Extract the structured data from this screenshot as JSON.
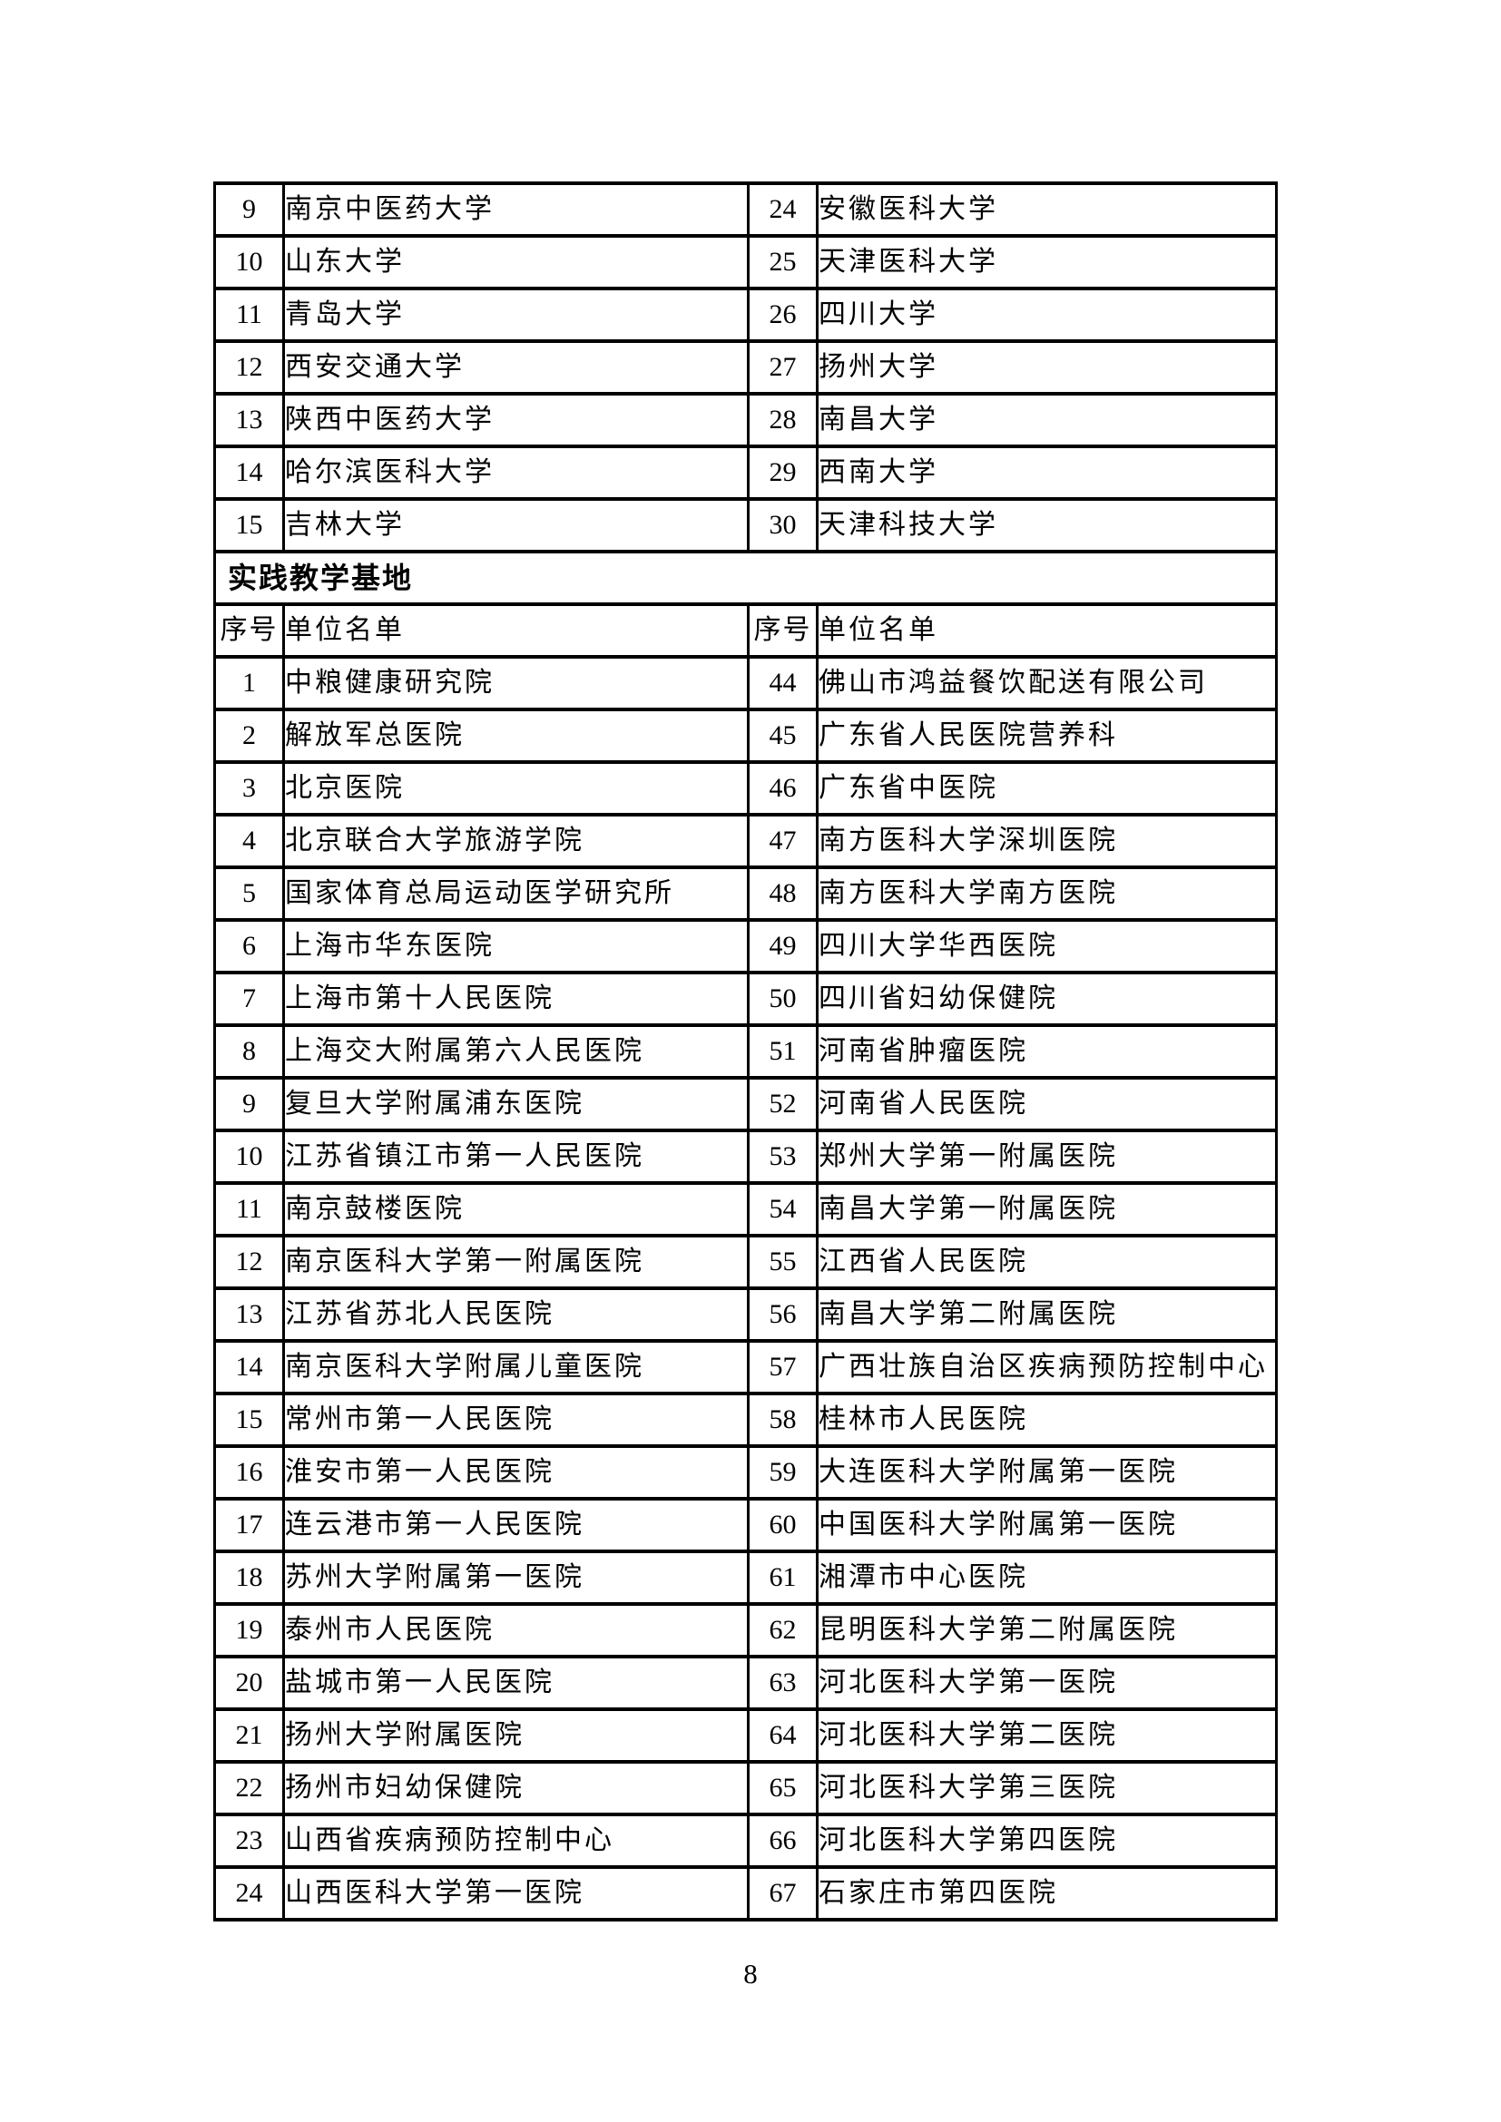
{
  "page": {
    "number": "8"
  },
  "table": {
    "section_header": "实践教学基地",
    "column_headers": {
      "no": "序号",
      "name": "单位名单"
    },
    "universities": {
      "left": [
        {
          "no": "9",
          "name": "南京中医药大学"
        },
        {
          "no": "10",
          "name": "山东大学"
        },
        {
          "no": "11",
          "name": "青岛大学"
        },
        {
          "no": "12",
          "name": "西安交通大学"
        },
        {
          "no": "13",
          "name": "陕西中医药大学"
        },
        {
          "no": "14",
          "name": "哈尔滨医科大学"
        },
        {
          "no": "15",
          "name": "吉林大学"
        }
      ],
      "right": [
        {
          "no": "24",
          "name": "安徽医科大学"
        },
        {
          "no": "25",
          "name": "天津医科大学"
        },
        {
          "no": "26",
          "name": "四川大学"
        },
        {
          "no": "27",
          "name": "扬州大学"
        },
        {
          "no": "28",
          "name": "南昌大学"
        },
        {
          "no": "29",
          "name": "西南大学"
        },
        {
          "no": "30",
          "name": "天津科技大学"
        }
      ]
    },
    "bases": {
      "left": [
        {
          "no": "1",
          "name": "中粮健康研究院"
        },
        {
          "no": "2",
          "name": "解放军总医院"
        },
        {
          "no": "3",
          "name": "北京医院"
        },
        {
          "no": "4",
          "name": "北京联合大学旅游学院"
        },
        {
          "no": "5",
          "name": "国家体育总局运动医学研究所"
        },
        {
          "no": "6",
          "name": "上海市华东医院"
        },
        {
          "no": "7",
          "name": "上海市第十人民医院"
        },
        {
          "no": "8",
          "name": "上海交大附属第六人民医院"
        },
        {
          "no": "9",
          "name": "复旦大学附属浦东医院"
        },
        {
          "no": "10",
          "name": "江苏省镇江市第一人民医院"
        },
        {
          "no": "11",
          "name": "南京鼓楼医院"
        },
        {
          "no": "12",
          "name": "南京医科大学第一附属医院"
        },
        {
          "no": "13",
          "name": "江苏省苏北人民医院"
        },
        {
          "no": "14",
          "name": "南京医科大学附属儿童医院"
        },
        {
          "no": "15",
          "name": "常州市第一人民医院"
        },
        {
          "no": "16",
          "name": "淮安市第一人民医院"
        },
        {
          "no": "17",
          "name": "连云港市第一人民医院"
        },
        {
          "no": "18",
          "name": "苏州大学附属第一医院"
        },
        {
          "no": "19",
          "name": "泰州市人民医院"
        },
        {
          "no": "20",
          "name": "盐城市第一人民医院"
        },
        {
          "no": "21",
          "name": "扬州大学附属医院"
        },
        {
          "no": "22",
          "name": "扬州市妇幼保健院"
        },
        {
          "no": "23",
          "name": "山西省疾病预防控制中心"
        },
        {
          "no": "24",
          "name": "山西医科大学第一医院"
        }
      ],
      "right": [
        {
          "no": "44",
          "name": "佛山市鸿益餐饮配送有限公司"
        },
        {
          "no": "45",
          "name": "广东省人民医院营养科"
        },
        {
          "no": "46",
          "name": "广东省中医院"
        },
        {
          "no": "47",
          "name": "南方医科大学深圳医院"
        },
        {
          "no": "48",
          "name": "南方医科大学南方医院"
        },
        {
          "no": "49",
          "name": "四川大学华西医院"
        },
        {
          "no": "50",
          "name": "四川省妇幼保健院"
        },
        {
          "no": "51",
          "name": "河南省肿瘤医院"
        },
        {
          "no": "52",
          "name": "河南省人民医院"
        },
        {
          "no": "53",
          "name": "郑州大学第一附属医院"
        },
        {
          "no": "54",
          "name": "南昌大学第一附属医院"
        },
        {
          "no": "55",
          "name": "江西省人民医院"
        },
        {
          "no": "56",
          "name": "南昌大学第二附属医院"
        },
        {
          "no": "57",
          "name": "广西壮族自治区疾病预防控制中心"
        },
        {
          "no": "58",
          "name": "桂林市人民医院"
        },
        {
          "no": "59",
          "name": "大连医科大学附属第一医院"
        },
        {
          "no": "60",
          "name": "中国医科大学附属第一医院"
        },
        {
          "no": "61",
          "name": "湘潭市中心医院"
        },
        {
          "no": "62",
          "name": "昆明医科大学第二附属医院"
        },
        {
          "no": "63",
          "name": "河北医科大学第一医院"
        },
        {
          "no": "64",
          "name": "河北医科大学第二医院"
        },
        {
          "no": "65",
          "name": "河北医科大学第三医院"
        },
        {
          "no": "66",
          "name": "河北医科大学第四医院"
        },
        {
          "no": "67",
          "name": "石家庄市第四医院"
        }
      ]
    }
  }
}
